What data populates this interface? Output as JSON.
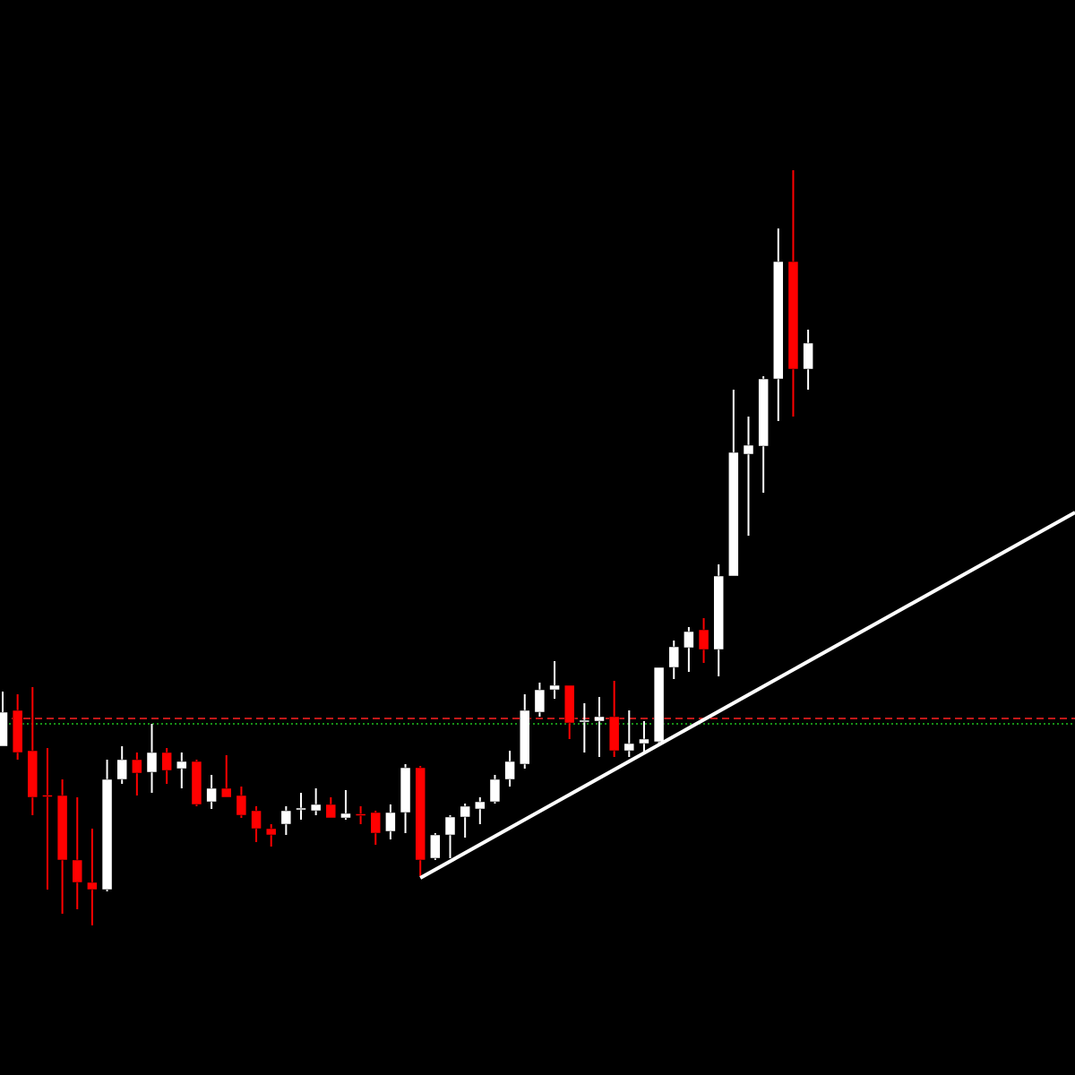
{
  "chart_data": {
    "type": "candlestick",
    "up_color": "#ffffff",
    "down_color": "#ff0000",
    "ylim": [
      0,
      120
    ],
    "open": [
      36.7,
      40.7,
      36.2,
      31.2,
      31.2,
      24.0,
      21.5,
      20.7,
      33.0,
      35.2,
      33.8,
      36.0,
      34.2,
      35.0,
      30.5,
      32.0,
      31.2,
      29.5,
      27.5,
      28.0,
      29.6,
      29.5,
      30.2,
      28.7,
      29.1,
      29.3,
      27.2,
      29.3,
      34.3,
      24.2,
      26.8,
      28.8,
      29.7,
      30.5,
      33.0,
      34.7,
      40.5,
      43.0,
      43.5,
      39.4,
      39.5,
      40.0,
      36.2,
      37.0,
      37.2,
      45.5,
      47.7,
      49.7,
      47.5,
      55.7,
      69.3,
      70.2,
      77.7,
      90.8,
      78.8
    ],
    "high": [
      42.8,
      42.5,
      43.3,
      36.5,
      33.0,
      31.0,
      27.5,
      35.2,
      36.7,
      36.0,
      39.2,
      36.5,
      36.0,
      35.2,
      33.5,
      35.7,
      32.2,
      30.0,
      28.0,
      30.0,
      31.5,
      32.0,
      31.0,
      31.8,
      30.0,
      29.5,
      30.2,
      34.7,
      34.5,
      27.0,
      29.0,
      30.3,
      31.0,
      33.5,
      36.2,
      42.5,
      43.8,
      46.2,
      43.5,
      41.5,
      42.2,
      44.0,
      40.7,
      39.5,
      45.5,
      48.5,
      50.0,
      51.0,
      57.0,
      76.5,
      73.5,
      78.0,
      94.5,
      101.0,
      83.2
    ],
    "low": [
      36.7,
      35.2,
      29.0,
      20.7,
      18.0,
      18.5,
      16.7,
      20.5,
      32.5,
      31.2,
      31.5,
      32.5,
      32.0,
      30.0,
      29.7,
      31.0,
      28.7,
      26.0,
      25.5,
      26.8,
      28.5,
      29.0,
      28.7,
      28.5,
      28.0,
      25.7,
      26.3,
      27.0,
      22.2,
      24.0,
      24.2,
      26.5,
      28.0,
      30.3,
      32.2,
      34.2,
      40.0,
      42.0,
      37.5,
      36.0,
      35.5,
      35.5,
      35.5,
      36.0,
      37.0,
      44.2,
      45.0,
      46.0,
      44.5,
      55.7,
      60.2,
      65.0,
      73.0,
      73.5,
      76.5
    ],
    "close": [
      40.5,
      36.0,
      31.0,
      31.1,
      24.0,
      21.5,
      20.7,
      33.0,
      35.2,
      33.7,
      36.0,
      34.0,
      35.0,
      30.2,
      32.0,
      31.0,
      29.0,
      27.5,
      26.8,
      29.5,
      29.8,
      30.2,
      28.7,
      29.2,
      29.0,
      27.0,
      29.3,
      34.3,
      24.0,
      26.8,
      28.8,
      30.0,
      30.5,
      33.0,
      35.0,
      40.7,
      43.0,
      43.5,
      39.3,
      39.6,
      40.0,
      36.2,
      37.0,
      37.5,
      45.5,
      47.8,
      49.5,
      47.5,
      55.7,
      69.5,
      70.3,
      77.7,
      90.8,
      78.8,
      81.7
    ],
    "levels": [
      {
        "value": 39.8,
        "color": "#ff2020",
        "style": "dashed"
      },
      {
        "value": 39.2,
        "color": "#20c020",
        "style": "dotted"
      }
    ],
    "trendline": {
      "from": [
        28,
        22.0
      ],
      "to": [
        71.9,
        62.8
      ],
      "color": "#ffffff"
    }
  }
}
